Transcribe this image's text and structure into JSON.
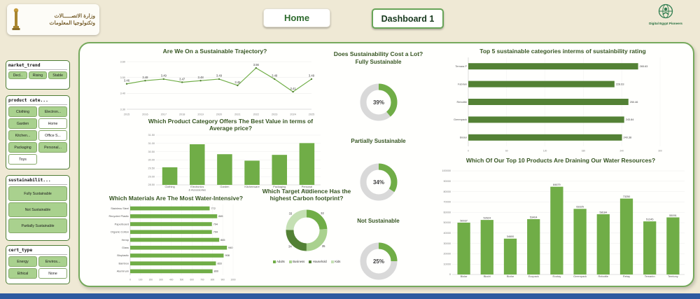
{
  "header": {
    "ministry_line1": "وزارة الاتصـــــالات",
    "ministry_line2": "وتكنولوجيا المعلومات",
    "home_label": "Home",
    "dashboard_label": "Dashboard 1",
    "brand_label": "Digital Egypt Pioneers"
  },
  "sidebar": {
    "slicers": [
      {
        "title": "market_trend",
        "items": [
          {
            "label": "Decl..",
            "selected": true
          },
          {
            "label": "Rising",
            "selected": true
          },
          {
            "label": "Stable",
            "selected": true
          }
        ]
      },
      {
        "title": "product cate...",
        "items": [
          {
            "label": "Clothing",
            "selected": true
          },
          {
            "label": "Electron...",
            "selected": true
          },
          {
            "label": "Garden",
            "selected": true
          },
          {
            "label": "Home",
            "selected": false
          },
          {
            "label": "Kitchen...",
            "selected": true
          },
          {
            "label": "Office S...",
            "selected": false
          },
          {
            "label": "Packaging",
            "selected": true
          },
          {
            "label": "Personal...",
            "selected": true
          },
          {
            "label": "Toys",
            "selected": false
          }
        ]
      },
      {
        "title": "sustainabilit...",
        "items": [
          {
            "label": "Fully Sustainable",
            "selected": true
          },
          {
            "label": "Not Sustainable",
            "selected": true
          },
          {
            "label": "Partially Sustainable",
            "selected": true
          }
        ]
      },
      {
        "title": "cert_type",
        "items": [
          {
            "label": "Energy",
            "selected": true
          },
          {
            "label": "Enviros...",
            "selected": true
          },
          {
            "label": "Ethical",
            "selected": true
          },
          {
            "label": "None",
            "selected": false
          }
        ]
      }
    ]
  },
  "palette": {
    "green": "#70ad47",
    "dark_green": "#538135",
    "light_green": "#a9d18e",
    "pale_green": "#c5e0b4",
    "gray": "#d9d9d9",
    "title": "#375623",
    "blue_bar": "#2d5aa0"
  },
  "chart_data": [
    {
      "key": "trajectory",
      "type": "line",
      "title": "Are We On a Sustainable Trajectory?",
      "x": [
        "2015",
        "2016",
        "2017",
        "2018",
        "2019",
        "2020",
        "2021",
        "2022",
        "2023",
        "2024",
        "2025"
      ],
      "values": [
        3.46,
        3.48,
        3.49,
        3.47,
        3.48,
        3.49,
        3.45,
        3.56,
        3.49,
        3.41,
        3.49
      ],
      "ylim": [
        3.3,
        3.6
      ],
      "yticks": [
        3.3,
        3.4,
        3.5,
        3.6
      ],
      "grid": true,
      "legend": "none"
    },
    {
      "key": "avg_price",
      "type": "column",
      "title": "Which Product Category Offers The Best Value in terms of Average price?",
      "categories": [
        "Clothing",
        "Electronics & Accessories",
        "Garden",
        "Kitchenware",
        "Packaging",
        "Personal Care"
      ],
      "values": [
        29.56,
        30.95,
        30.35,
        29.96,
        30.31,
        31.02
      ],
      "ylim": [
        28.5,
        31.5
      ],
      "yticks": [
        28.5,
        29.0,
        29.5,
        30.0,
        30.5,
        31.0,
        31.5
      ],
      "tick_decimals": 2,
      "show_values": false,
      "ylabel": "Average price"
    },
    {
      "key": "water",
      "type": "hbar",
      "title": "Which Materials Are The Most Water-Intensive?",
      "categories": [
        "Stainless Steel",
        "Recycled Plastic",
        "Paperboard",
        "Organic Cotton",
        "Hemp",
        "Glass",
        "Bioplastic",
        "Bamboo",
        "Aluminum"
      ],
      "values": [
        772,
        845,
        794,
        794,
        865,
        940,
        908,
        833,
        800
      ],
      "xlim": [
        0,
        1000
      ],
      "xticks": [
        0,
        100,
        200,
        300,
        400,
        500,
        600,
        700,
        800,
        900,
        1000
      ],
      "value_decimals": 0,
      "bar_color": "green"
    },
    {
      "key": "cost",
      "type": "donut_group",
      "title": "Does Sustainability Cost a Lot?",
      "donuts": [
        {
          "label": "Fully Sustainable",
          "percent": 39
        },
        {
          "label": "Partially Sustainable",
          "percent": 34
        },
        {
          "label": "Not Sustainable",
          "percent": 25
        }
      ]
    },
    {
      "key": "carbon",
      "type": "donut_multi",
      "title": "Which Target Audience Has the highest Carbon footprint?",
      "segments": [
        {
          "name": "Adults",
          "value": 32
        },
        {
          "name": "Business",
          "value": 35
        },
        {
          "name": "Household",
          "value": 34
        },
        {
          "name": "Kids",
          "value": 33
        }
      ],
      "legend": "bottom"
    },
    {
      "key": "top5",
      "type": "hbar",
      "title": "Top 5 sustainable categories interms of  sustainbility rating",
      "categories": [
        "Temara P",
        "Fabriek",
        "Rebottle",
        "Greenpack",
        "Biolar"
      ],
      "values": [
        265.63,
        228.63,
        250.46,
        243.84,
        240.38
      ],
      "xlim": [
        0,
        300
      ],
      "xticks": [
        0,
        60,
        120,
        180,
        240,
        300
      ],
      "value_decimals": 2,
      "bar_color": "dark_green"
    },
    {
      "key": "top10",
      "type": "column",
      "title": "Which Of Our Top 10 Products Are Draining Our Water Resources?",
      "categories": [
        "Biolar",
        "Biodri",
        "Biofar",
        "Ecopack",
        "Ecotay",
        "Greenpack",
        "Rebottle",
        "Retay",
        "Temarkn",
        "Temtony"
      ],
      "values": [
        50037,
        52624,
        34600,
        53404,
        84679,
        63325,
        58184,
        73250,
        51245,
        55091
      ],
      "ylim": [
        0,
        100000
      ],
      "yticks": [
        0,
        10000,
        20000,
        30000,
        40000,
        50000,
        60000,
        70000,
        80000,
        90000,
        100000
      ],
      "tick_decimals": 0,
      "show_values": true
    }
  ]
}
